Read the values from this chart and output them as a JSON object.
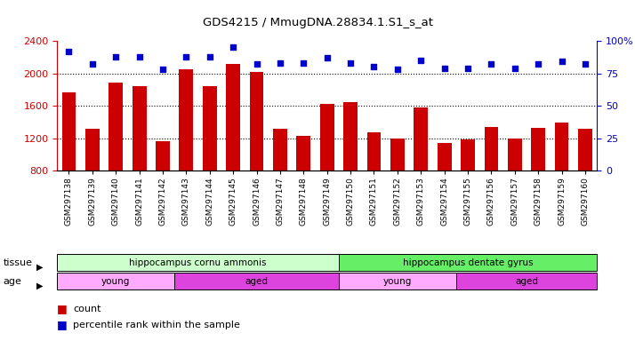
{
  "title": "GDS4215 / MmugDNA.28834.1.S1_s_at",
  "samples": [
    "GSM297138",
    "GSM297139",
    "GSM297140",
    "GSM297141",
    "GSM297142",
    "GSM297143",
    "GSM297144",
    "GSM297145",
    "GSM297146",
    "GSM297147",
    "GSM297148",
    "GSM297149",
    "GSM297150",
    "GSM297151",
    "GSM297152",
    "GSM297153",
    "GSM297154",
    "GSM297155",
    "GSM297156",
    "GSM297157",
    "GSM297158",
    "GSM297159",
    "GSM297160"
  ],
  "counts": [
    1760,
    1320,
    1890,
    1840,
    1160,
    2050,
    1840,
    2120,
    2020,
    1310,
    1230,
    1620,
    1640,
    1270,
    1200,
    1580,
    1140,
    1180,
    1340,
    1200,
    1330,
    1390,
    1310
  ],
  "percentiles": [
    92,
    82,
    88,
    88,
    78,
    88,
    88,
    95,
    82,
    83,
    83,
    87,
    83,
    80,
    78,
    85,
    79,
    79,
    82,
    79,
    82,
    84,
    82
  ],
  "bar_color": "#cc0000",
  "dot_color": "#0000cc",
  "ylim_left": [
    800,
    2400
  ],
  "ylim_right": [
    0,
    100
  ],
  "yticks_left": [
    800,
    1200,
    1600,
    2000,
    2400
  ],
  "yticks_right": [
    0,
    25,
    50,
    75,
    100
  ],
  "grid_lines": [
    1200,
    1600,
    2000
  ],
  "tissue_groups": [
    {
      "label": "hippocampus cornu ammonis",
      "start": 0,
      "end": 12,
      "color": "#ccffcc"
    },
    {
      "label": "hippocampus dentate gyrus",
      "start": 12,
      "end": 23,
      "color": "#66ee66"
    }
  ],
  "age_groups": [
    {
      "label": "young",
      "start": 0,
      "end": 5,
      "color": "#ffaaff"
    },
    {
      "label": "aged",
      "start": 5,
      "end": 12,
      "color": "#dd44dd"
    },
    {
      "label": "young",
      "start": 12,
      "end": 17,
      "color": "#ffaaff"
    },
    {
      "label": "aged",
      "start": 17,
      "end": 23,
      "color": "#dd44dd"
    }
  ],
  "legend_count_color": "#cc0000",
  "legend_dot_color": "#0000cc"
}
